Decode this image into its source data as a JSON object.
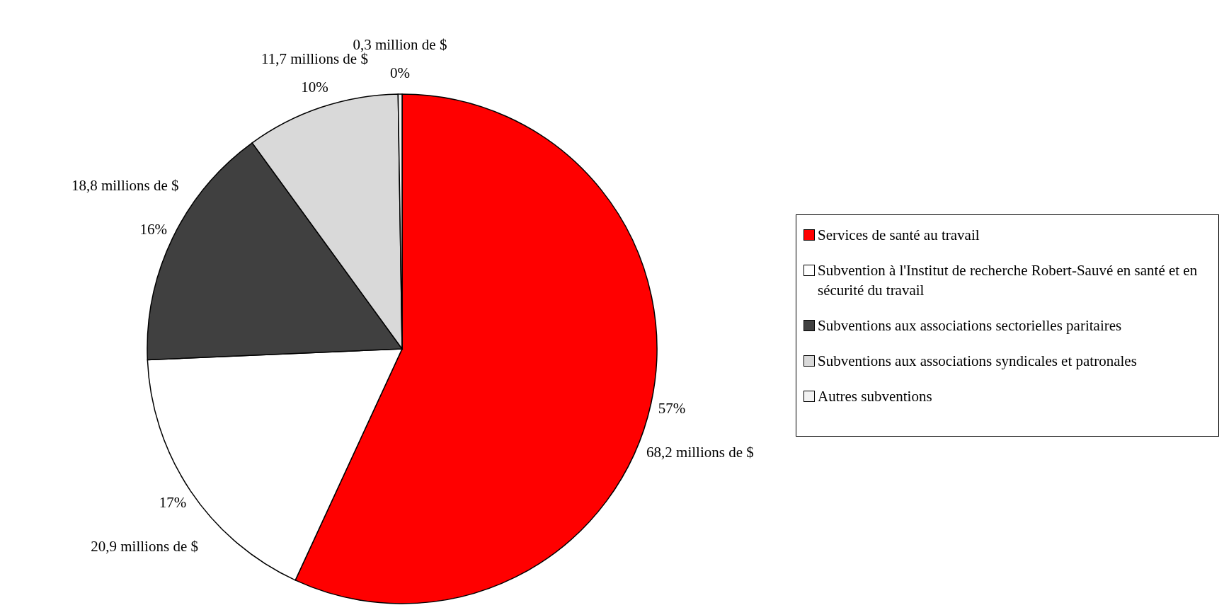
{
  "chart_data": {
    "type": "pie",
    "categories": [
      "Services de santé au travail",
      "Subvention à l'Institut de recherche Robert-Sauvé en santé et en sécurité du travail",
      "Subventions aux associations sectorielles paritaires",
      "Subventions aux associations syndicales et patronales",
      "Autres subventions"
    ],
    "values": [
      68.2,
      20.9,
      18.8,
      11.7,
      0.3
    ],
    "colors": [
      "#ff0000",
      "#ffffff",
      "#404040",
      "#d9d9d9",
      "#f2f2f2"
    ],
    "value_labels": [
      "68,2 millions de $",
      "20,9 millions de $",
      "18,8 millions de $",
      "11,7 millions de $",
      "0,3 million de $"
    ],
    "annotations": [
      "57%",
      "17%",
      "16%",
      "10%",
      "0%"
    ],
    "legend": "right"
  }
}
